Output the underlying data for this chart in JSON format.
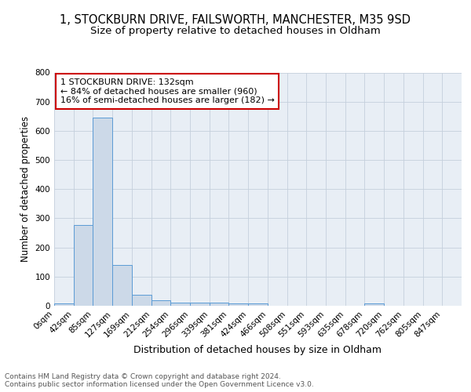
{
  "title": "1, STOCKBURN DRIVE, FAILSWORTH, MANCHESTER, M35 9SD",
  "subtitle": "Size of property relative to detached houses in Oldham",
  "xlabel": "Distribution of detached houses by size in Oldham",
  "ylabel": "Number of detached properties",
  "bin_labels": [
    "0sqm",
    "42sqm",
    "85sqm",
    "127sqm",
    "169sqm",
    "212sqm",
    "254sqm",
    "296sqm",
    "339sqm",
    "381sqm",
    "424sqm",
    "466sqm",
    "508sqm",
    "551sqm",
    "593sqm",
    "635sqm",
    "678sqm",
    "720sqm",
    "762sqm",
    "805sqm",
    "847sqm"
  ],
  "bin_values": [
    8,
    277,
    645,
    140,
    38,
    18,
    12,
    11,
    11,
    9,
    9,
    0,
    0,
    0,
    0,
    0,
    7,
    0,
    0,
    0,
    0
  ],
  "bar_color": "#ccd9e8",
  "bar_edge_color": "#5b9bd5",
  "annotation_text": "1 STOCKBURN DRIVE: 132sqm\n← 84% of detached houses are smaller (960)\n16% of semi-detached houses are larger (182) →",
  "annotation_box_facecolor": "white",
  "annotation_box_edgecolor": "#cc0000",
  "ylim": [
    0,
    800
  ],
  "yticks": [
    0,
    100,
    200,
    300,
    400,
    500,
    600,
    700,
    800
  ],
  "footer_text": "Contains HM Land Registry data © Crown copyright and database right 2024.\nContains public sector information licensed under the Open Government Licence v3.0.",
  "plot_bg_color": "#e8eef5",
  "fig_bg_color": "#ffffff",
  "grid_color": "#c5d0dc",
  "title_fontsize": 10.5,
  "subtitle_fontsize": 9.5,
  "xlabel_fontsize": 9,
  "ylabel_fontsize": 8.5,
  "tick_fontsize": 7.5,
  "annotation_fontsize": 8,
  "footer_fontsize": 6.5
}
